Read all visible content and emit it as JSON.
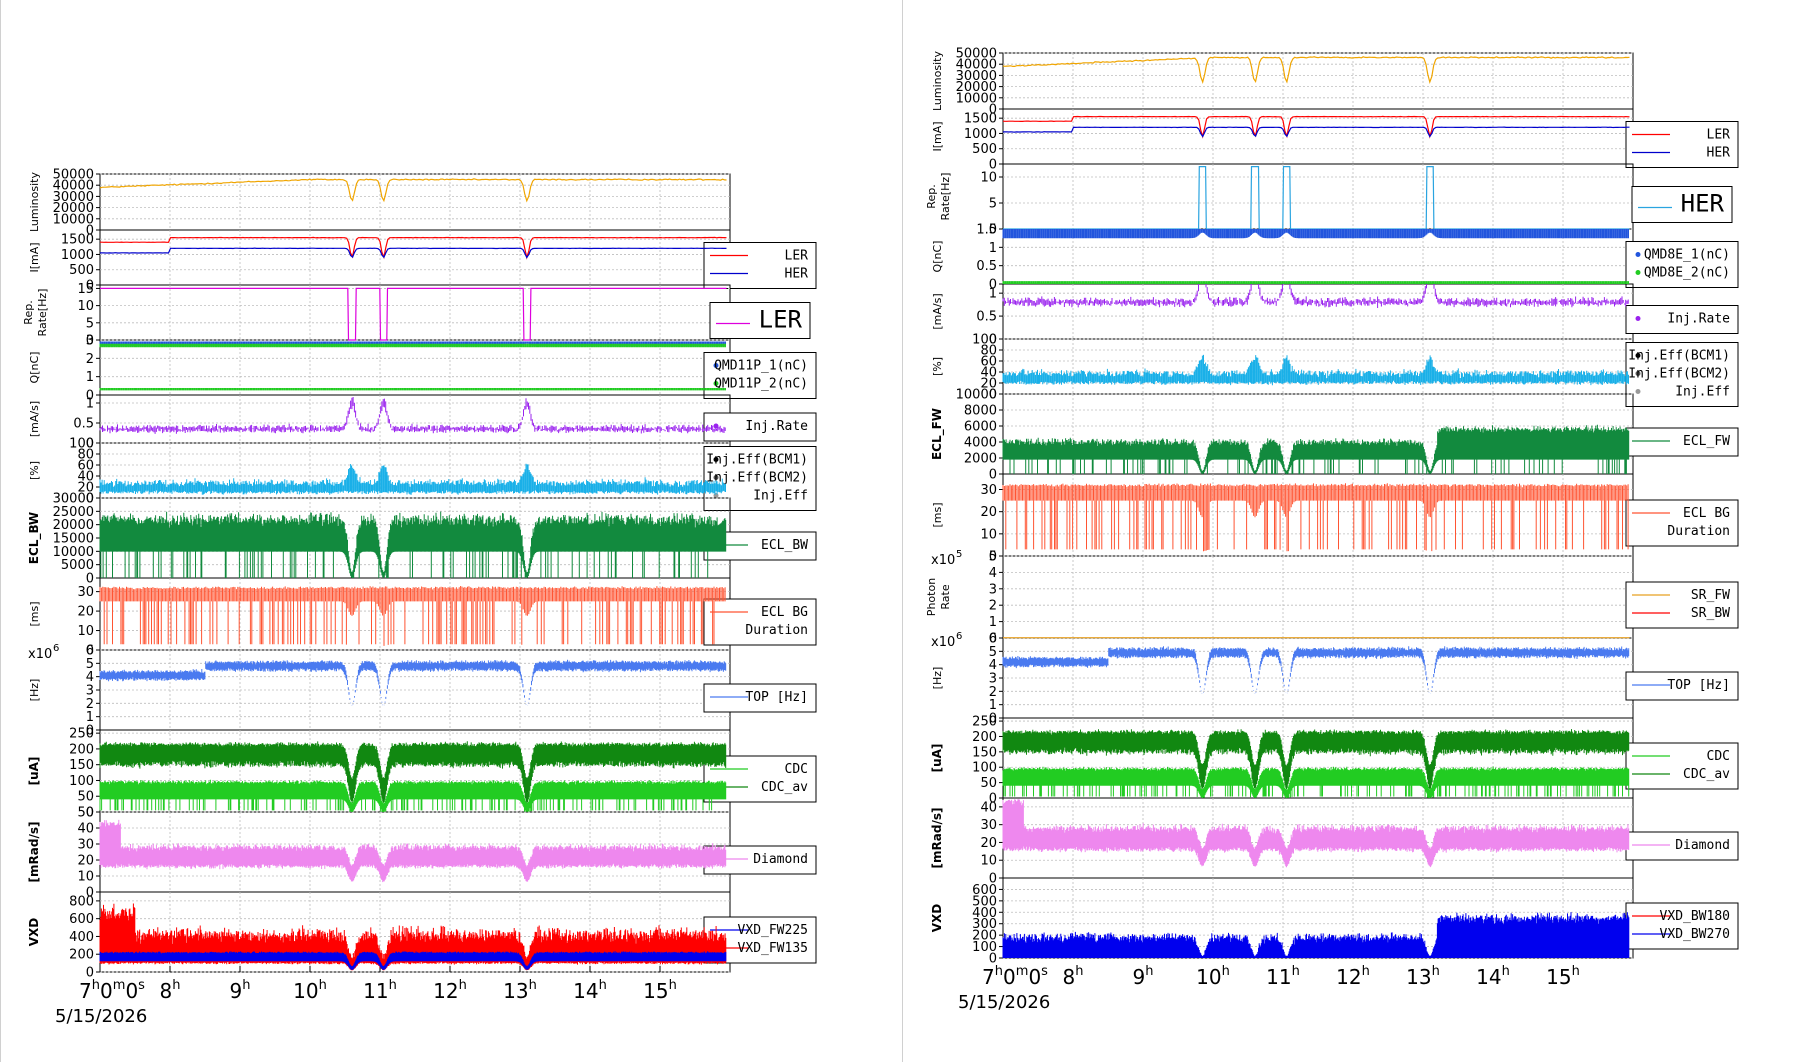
{
  "date_label": "5/15/2026",
  "time_ticks": [
    "7h0m0s",
    "8h",
    "9h",
    "10h",
    "11h",
    "12h",
    "13h",
    "14h",
    "15h"
  ],
  "colors": {
    "luminosity": "#f0a500",
    "ler": "#ff0000",
    "her": "#0000cc",
    "rep_ler": "#dd00dd",
    "rep_her": "#2aa4e0",
    "q1": "#2255dd",
    "q2": "#22cc22",
    "inj_rate": "#9a22ee",
    "inj_eff": "#1ab0e8",
    "ecl": "#128a3e",
    "ecl_bg": "#ff5533",
    "top": "#4a7af0",
    "cdc": "#118811",
    "cdc_av": "#22cc22",
    "diamond": "#ee88ee",
    "vxd_blue": "#0000ee",
    "vxd_red": "#ff0000",
    "sr_fw": "#e8a020",
    "sr_bw": "#ff0000"
  },
  "chart_data": [
    {
      "type": "line",
      "title": "",
      "x_range": [
        "7h0m0s",
        "16h"
      ],
      "x_ticks": [
        "7h0m0s",
        "8h",
        "9h",
        "10h",
        "11h",
        "12h",
        "13h",
        "14h",
        "15h"
      ],
      "injection_dips": [
        10.6,
        11.05,
        13.1
      ],
      "panels": [
        {
          "ylabel": "Luminosity",
          "yticks": [
            "50000",
            "40000",
            "30000",
            "20000",
            "10000",
            "0"
          ],
          "ylim": [
            0,
            50000
          ],
          "series": [
            {
              "name": "",
              "baseline": 38000,
              "end": 45000,
              "dip_to": 26000
            }
          ],
          "legend": []
        },
        {
          "ylabel": "I[mA]",
          "yticks": [
            "1500",
            "1000",
            "500",
            "0"
          ],
          "ylim": [
            0,
            1800
          ],
          "series": [
            {
              "name": "LER",
              "baseline": 1550,
              "dip_to": 900
            },
            {
              "name": "HER",
              "baseline": 1200,
              "dip_to": 900
            }
          ],
          "legend": [
            "LER",
            "HER"
          ]
        },
        {
          "ylabel": "Rep. Rate[Hz]",
          "yticks": [
            "15",
            "10",
            "5",
            "0"
          ],
          "ylim": [
            0,
            16
          ],
          "series": [
            {
              "name": "LER",
              "baseline": 15,
              "dip_to": 0
            }
          ],
          "legend": [
            "LER"
          ]
        },
        {
          "ylabel": "Q[nC]",
          "yticks": [
            "3",
            "2",
            "1",
            "0"
          ],
          "ylim": [
            0,
            3
          ],
          "series": [
            {
              "name": "QMD11P_1(nC)",
              "baseline": 2.8
            },
            {
              "name": "QMD11P_2(nC)",
              "baseline": 0.3
            }
          ],
          "legend": [
            "QMD11P_1(nC)",
            "QMD11P_2(nC)"
          ]
        },
        {
          "ylabel": "[mA/s]",
          "yticks": [
            "1",
            "0.5",
            "0"
          ],
          "ylim": [
            0,
            1.2
          ],
          "series": [
            {
              "name": "Inj.Rate",
              "baseline": 0.3
            }
          ],
          "legend": [
            "Inj.Rate"
          ]
        },
        {
          "ylabel": "[%]",
          "yticks": [
            "100",
            "80",
            "60",
            "40",
            "20",
            "0"
          ],
          "ylim": [
            0,
            100
          ],
          "series": [
            {
              "name": "Inj.Eff(BCM1)",
              "baseline": 20
            },
            {
              "name": "Inj.Eff(BCM2)",
              "baseline": 20
            },
            {
              "name": "Inj.Eff",
              "baseline": 20
            }
          ],
          "legend": [
            "Inj.Eff(BCM1)",
            "Inj.Eff(BCM2)",
            "Inj.Eff"
          ]
        },
        {
          "ylabel": "ECL_BW",
          "yticks": [
            "30000",
            "25000",
            "20000",
            "15000",
            "10000",
            "5000",
            "0"
          ],
          "ylim": [
            0,
            30000
          ],
          "series": [
            {
              "name": "ECL_BW",
              "baseline": 22000
            }
          ],
          "legend": [
            "ECL_BW"
          ]
        },
        {
          "ylabel": "[ms]",
          "yticks": [
            "30",
            "20",
            "10",
            "0"
          ],
          "ylim": [
            0,
            37
          ],
          "series": [
            {
              "name": "ECL BG Duration",
              "baseline": 30
            }
          ],
          "legend": [
            "ECL BG",
            "Duration"
          ]
        },
        {
          "ylabel": "[Hz]",
          "yticks": [
            "6",
            "5",
            "4",
            "3",
            "2",
            "1",
            "0"
          ],
          "ylim": [
            0,
            6
          ],
          "multiplier": "x10",
          "multiplier_exp": "6",
          "series": [
            {
              "name": "TOP [Hz]",
              "baseline": 4.9,
              "dip_to": 1.8
            }
          ],
          "legend": [
            "TOP [Hz]"
          ]
        },
        {
          "ylabel": "[uA]",
          "yticks": [
            "250",
            "200",
            "150",
            "100",
            "50",
            "0"
          ],
          "ylim": [
            0,
            260
          ],
          "series": [
            {
              "name": "CDC",
              "baseline": 190
            },
            {
              "name": "CDC_av",
              "baseline": 75
            }
          ],
          "legend": [
            "CDC",
            "CDC_av"
          ]
        },
        {
          "ylabel": "[mRad/s]",
          "yticks": [
            "50",
            "40",
            "30",
            "20",
            "10",
            "0"
          ],
          "ylim": [
            0,
            50
          ],
          "series": [
            {
              "name": "Diamond",
              "baseline": 22
            }
          ],
          "legend": [
            "Diamond"
          ]
        },
        {
          "ylabel": "VXD",
          "yticks": [
            "800",
            "600",
            "400",
            "200",
            "0"
          ],
          "ylim": [
            0,
            900
          ],
          "series": [
            {
              "name": "VXD_FW225",
              "baseline": 180
            },
            {
              "name": "VXD_FW135",
              "baseline": 350
            }
          ],
          "legend": [
            "VXD_FW225",
            "VXD_FW135"
          ]
        }
      ]
    },
    {
      "type": "line",
      "title": "",
      "x_range": [
        "7h0m0s",
        "16h"
      ],
      "x_ticks": [
        "7h0m0s",
        "8h",
        "9h",
        "10h",
        "11h",
        "12h",
        "13h",
        "14h",
        "15h"
      ],
      "injection_dips": [
        9.85,
        10.6,
        11.05,
        13.1
      ],
      "panels": [
        {
          "ylabel": "Luminosity",
          "yticks": [
            "50000",
            "40000",
            "30000",
            "20000",
            "10000",
            "0"
          ],
          "ylim": [
            0,
            50000
          ],
          "series": [
            {
              "name": "",
              "baseline": 38000,
              "end": 46000,
              "dip_to": 24000
            }
          ],
          "legend": []
        },
        {
          "ylabel": "I[mA]",
          "yticks": [
            "1500",
            "1000",
            "500",
            "0"
          ],
          "ylim": [
            0,
            1800
          ],
          "series": [
            {
              "name": "LER",
              "baseline": 1550,
              "dip_to": 900
            },
            {
              "name": "HER",
              "baseline": 1200,
              "dip_to": 900
            }
          ],
          "legend": [
            "LER",
            "HER"
          ]
        },
        {
          "ylabel": "Rep. Rate[Hz]",
          "yticks": [
            "10",
            "5",
            "0"
          ],
          "ylim": [
            0,
            12.5
          ],
          "series": [
            {
              "name": "HER",
              "baseline": 0,
              "spike_to": 12
            }
          ],
          "legend": [
            "HER"
          ]
        },
        {
          "ylabel": "Q[nC]",
          "yticks": [
            "1.5",
            "1",
            "0.5",
            "0"
          ],
          "ylim": [
            0,
            1.5
          ],
          "series": [
            {
              "name": "QMD8E_1(nC)",
              "baseline": 1.4
            },
            {
              "name": "QMD8E_2(nC)",
              "baseline": 0.0
            }
          ],
          "legend": [
            "QMD8E_1(nC)",
            "QMD8E_2(nC)"
          ]
        },
        {
          "ylabel": "[mA/s]",
          "yticks": [
            "1",
            "0.5",
            "0"
          ],
          "ylim": [
            0,
            1.2
          ],
          "series": [
            {
              "name": "Inj.Rate",
              "baseline": 0.75
            }
          ],
          "legend": [
            "Inj.Rate"
          ]
        },
        {
          "ylabel": "[%]",
          "yticks": [
            "100",
            "80",
            "60",
            "40",
            "20",
            "0"
          ],
          "ylim": [
            0,
            100
          ],
          "series": [
            {
              "name": "Inj.Eff(BCM1)",
              "baseline": 30
            },
            {
              "name": "Inj.Eff(BCM2)",
              "baseline": 30
            },
            {
              "name": "Inj.Eff",
              "baseline": 30
            }
          ],
          "legend": [
            "Inj.Eff(BCM1)",
            "Inj.Eff(BCM2)",
            "Inj.Eff"
          ]
        },
        {
          "ylabel": "ECL_FW",
          "yticks": [
            "10000",
            "8000",
            "6000",
            "4000",
            "2000",
            "0"
          ],
          "ylim": [
            0,
            10000
          ],
          "series": [
            {
              "name": "ECL_FW",
              "baseline": 4000
            }
          ],
          "legend": [
            "ECL_FW"
          ]
        },
        {
          "ylabel": "[ms]",
          "yticks": [
            "30",
            "20",
            "10",
            "0"
          ],
          "ylim": [
            0,
            37
          ],
          "series": [
            {
              "name": "ECL BG Duration",
              "baseline": 30
            }
          ],
          "legend": [
            "ECL BG",
            "Duration"
          ]
        },
        {
          "ylabel": "Photon Rate",
          "yticks": [
            "5",
            "4",
            "3",
            "2",
            "1",
            "0"
          ],
          "ylim": [
            0,
            5
          ],
          "multiplier": "x10",
          "multiplier_exp": "5",
          "series": [
            {
              "name": "SR_FW",
              "baseline": 0.05
            },
            {
              "name": "SR_BW",
              "baseline": 0.0
            }
          ],
          "legend": [
            "SR_FW",
            "SR_BW"
          ]
        },
        {
          "ylabel": "[Hz]",
          "yticks": [
            "6",
            "5",
            "4",
            "3",
            "2",
            "1",
            "0"
          ],
          "ylim": [
            0,
            6
          ],
          "multiplier": "x10",
          "multiplier_exp": "6",
          "series": [
            {
              "name": "TOP [Hz]",
              "baseline": 5.0,
              "dip_to": 1.8
            }
          ],
          "legend": [
            "TOP [Hz]"
          ]
        },
        {
          "ylabel": "[uA]",
          "yticks": [
            "250",
            "200",
            "150",
            "100",
            "50",
            "0"
          ],
          "ylim": [
            0,
            260
          ],
          "series": [
            {
              "name": "CDC",
              "baseline": 190
            },
            {
              "name": "CDC_av",
              "baseline": 75
            }
          ],
          "legend": [
            "CDC",
            "CDC_av"
          ]
        },
        {
          "ylabel": "[mRad/s]",
          "yticks": [
            "40",
            "30",
            "20",
            "10",
            "0"
          ],
          "ylim": [
            0,
            45
          ],
          "series": [
            {
              "name": "Diamond",
              "baseline": 22
            }
          ],
          "legend": [
            "Diamond"
          ]
        },
        {
          "ylabel": "VXD",
          "yticks": [
            "600",
            "500",
            "400",
            "300",
            "200",
            "100",
            "0"
          ],
          "ylim": [
            0,
            700
          ],
          "series": [
            {
              "name": "VXD_BW180",
              "baseline": 10
            },
            {
              "name": "VXD_BW270",
              "baseline": 180
            }
          ],
          "legend": [
            "VXD_BW180",
            "VXD_BW270"
          ]
        }
      ]
    }
  ]
}
